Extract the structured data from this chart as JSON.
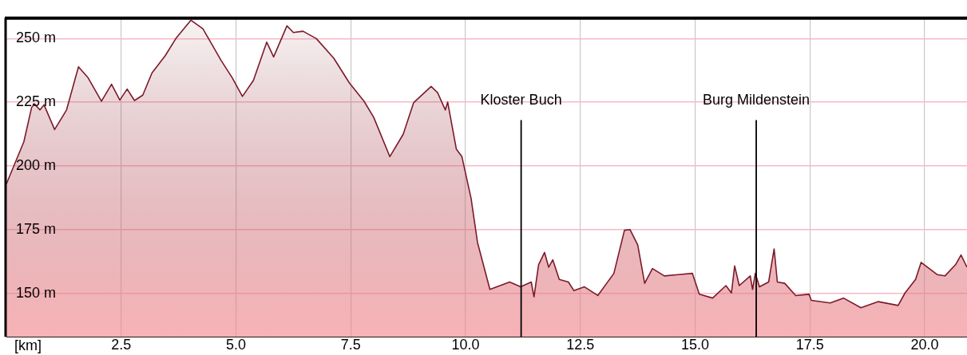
{
  "chart_data": {
    "type": "area",
    "xlabel": "[km]",
    "xlim": [
      0,
      20.92
    ],
    "xticks": [
      2.5,
      {
        "value": 5,
        "label": "5.0"
      },
      7.5,
      {
        "value": 10,
        "label": "10.0"
      },
      12.5,
      {
        "value": 15,
        "label": "15.0"
      },
      17.5,
      {
        "value": 20,
        "label": "20.0"
      }
    ],
    "ylim": [
      133,
      258
    ],
    "yticks": [
      {
        "value": 150,
        "label": "150 m"
      },
      {
        "value": 175,
        "label": "175 m"
      },
      {
        "value": 200,
        "label": "200 m"
      },
      {
        "value": 225,
        "label": "225 m"
      },
      {
        "value": 250,
        "label": "250 m"
      }
    ],
    "grid": true,
    "legend": false,
    "marker": "none",
    "line_style": "solid",
    "ref_lines": [
      {
        "axis": "x",
        "value": 11.21,
        "label": "Kloster Buch",
        "color": "#000000"
      },
      {
        "axis": "x",
        "value": 16.33,
        "label": "Burg Mildenstein",
        "color": "#000000"
      }
    ],
    "series": [
      {
        "color": "#7b1a2a",
        "x": [
          0.0,
          0.38,
          0.55,
          0.61,
          0.73,
          0.82,
          1.05,
          1.31,
          1.57,
          1.78,
          2.07,
          2.29,
          2.47,
          2.63,
          2.79,
          2.97,
          3.17,
          3.46,
          3.69,
          4.02,
          4.28,
          4.68,
          4.92,
          5.14,
          5.38,
          5.67,
          5.82,
          6.11,
          6.25,
          6.46,
          6.75,
          7.13,
          7.47,
          7.79,
          8.0,
          8.35,
          8.64,
          8.87,
          9.25,
          9.39,
          9.56,
          9.61,
          9.8,
          9.92,
          10.12,
          10.26,
          10.53,
          10.96,
          11.2,
          11.43,
          11.49,
          11.59,
          11.72,
          11.81,
          11.9,
          12.04,
          12.24,
          12.36,
          12.59,
          12.88,
          13.23,
          13.46,
          13.58,
          13.75,
          13.9,
          14.07,
          14.33,
          14.63,
          14.94,
          15.09,
          15.38,
          15.67,
          15.79,
          15.86,
          15.96,
          16.2,
          16.25,
          16.31,
          16.4,
          16.6,
          16.72,
          16.79,
          16.95,
          17.19,
          17.48,
          17.53,
          17.94,
          18.23,
          18.61,
          18.99,
          19.42,
          19.57,
          19.8,
          19.92,
          20.27,
          20.44,
          20.67,
          20.79,
          20.92
        ],
        "values": [
          193,
          209.5,
          223,
          224.4,
          222,
          224,
          214.3,
          222,
          238.9,
          234.6,
          225.4,
          232.1,
          225.9,
          230.2,
          225.7,
          227.8,
          236.5,
          243.3,
          250,
          257.2,
          253.8,
          241.3,
          234.6,
          227.3,
          233.6,
          248.6,
          242.8,
          255,
          252.4,
          252.9,
          250,
          242.3,
          232.6,
          225.4,
          219.1,
          203.7,
          212.4,
          224.9,
          231.2,
          228.8,
          222,
          225.1,
          206.6,
          203.7,
          187.3,
          170,
          151.6,
          154.5,
          152.6,
          154.5,
          148.7,
          161.3,
          166.1,
          160.3,
          163.2,
          155.5,
          154.5,
          151.1,
          152.6,
          149.2,
          157.9,
          174.8,
          175.1,
          169,
          154,
          159.8,
          156.9,
          157.4,
          157.9,
          149.7,
          148.2,
          153.1,
          150.2,
          160.8,
          153.1,
          156.9,
          151.6,
          157.9,
          152.6,
          154.5,
          167.5,
          154.5,
          154,
          149.2,
          149.7,
          147.3,
          146.3,
          148.2,
          144.4,
          146.8,
          145.3,
          150.2,
          155.5,
          162.2,
          157.4,
          156.9,
          161.3,
          165.1,
          160.3
        ]
      }
    ]
  }
}
